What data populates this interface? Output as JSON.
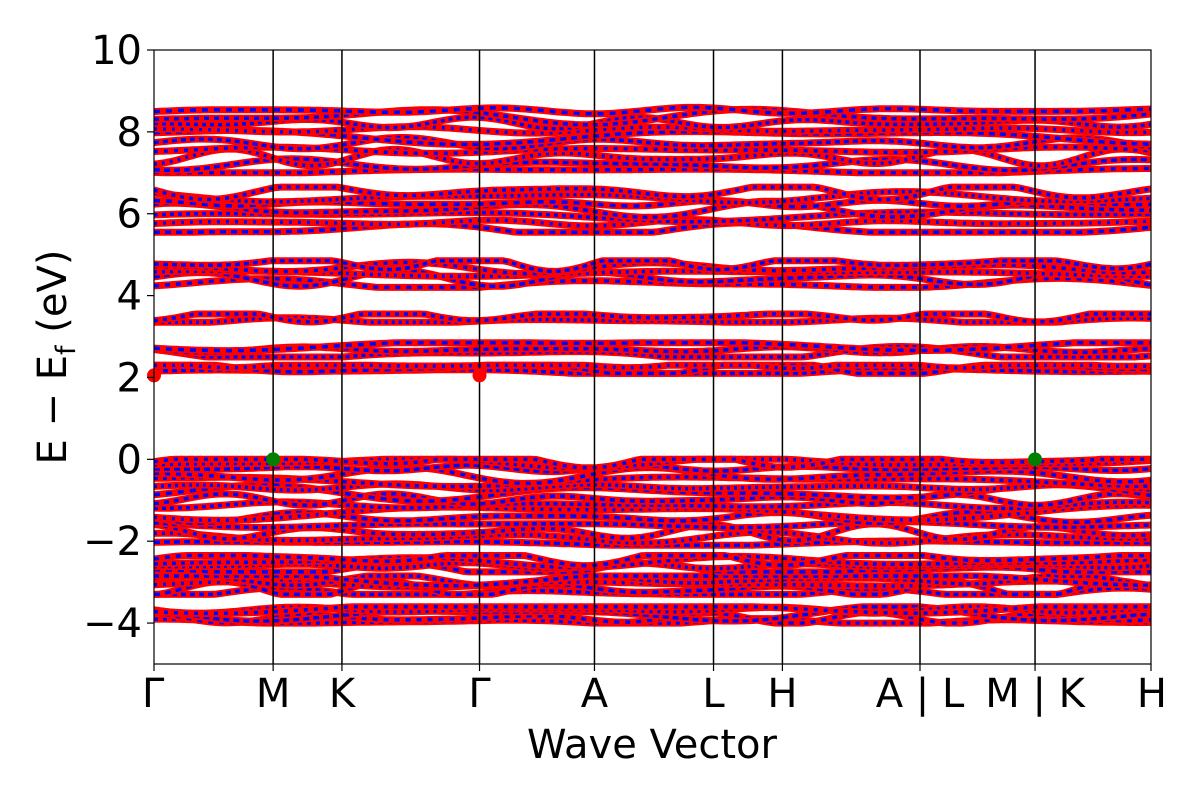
{
  "chart_data": {
    "type": "line",
    "title": "",
    "xlabel": "Wave Vector",
    "ylabel_main": "E − E",
    "ylabel_sub": "f",
    "ylabel_unit": " (eV)",
    "ylim": [
      -5,
      10
    ],
    "yticks": [
      -4,
      -2,
      0,
      2,
      4,
      6,
      8,
      10
    ],
    "ytick_labels": [
      "−4",
      "−2",
      "0",
      "2",
      "4",
      "6",
      "8",
      "10"
    ],
    "grid": false,
    "legend": "none",
    "kpath_ticks": [
      {
        "pos": 0.0,
        "label": "Γ"
      },
      {
        "pos": 0.1195,
        "label": "M"
      },
      {
        "pos": 0.1885,
        "label": "K"
      },
      {
        "pos": 0.3265,
        "label": "Γ"
      },
      {
        "pos": 0.4418,
        "label": "A"
      },
      {
        "pos": 0.5612,
        "label": "L"
      },
      {
        "pos": 0.6303,
        "label": "H"
      },
      {
        "pos": 0.7683,
        "label": "A | L"
      },
      {
        "pos": 0.8837,
        "label": "M | K"
      },
      {
        "pos": 1.0,
        "label": "H"
      }
    ],
    "band_groups_eV": [
      {
        "range": [
          -4.0,
          -3.6
        ],
        "bands": [
          -3.97,
          -3.88,
          -3.78,
          -3.68,
          -3.62
        ]
      },
      {
        "range": [
          -3.3,
          -2.85
        ],
        "bands": [
          -3.28,
          -3.18,
          -3.05,
          -2.95,
          -2.88
        ]
      },
      {
        "range": [
          -2.75,
          -2.35
        ],
        "bands": [
          -2.72,
          -2.6,
          -2.5,
          -2.4
        ]
      },
      {
        "range": [
          -2.1,
          0.0
        ],
        "bands": [
          -2.05,
          -1.92,
          -1.78,
          -1.6,
          -1.42,
          -1.28,
          -1.12,
          -0.98,
          -0.82,
          -0.68,
          -0.52,
          -0.38,
          -0.22,
          -0.08,
          -0.01
        ]
      },
      {
        "range": [
          2.1,
          2.3
        ],
        "bands": [
          2.12,
          2.22,
          2.3
        ]
      },
      {
        "range": [
          2.5,
          2.85
        ],
        "bands": [
          2.55,
          2.68,
          2.8
        ]
      },
      {
        "range": [
          3.35,
          3.55
        ],
        "bands": [
          3.38,
          3.5
        ]
      },
      {
        "range": [
          4.2,
          4.85
        ],
        "bands": [
          4.28,
          4.42,
          4.55,
          4.68,
          4.8
        ]
      },
      {
        "range": [
          5.55,
          6.65
        ],
        "bands": [
          5.6,
          5.78,
          5.95,
          6.1,
          6.25,
          6.4,
          6.55
        ]
      },
      {
        "range": [
          7.0,
          8.6
        ],
        "bands": [
          7.05,
          7.2,
          7.38,
          7.55,
          7.72,
          7.9,
          8.05,
          8.22,
          8.38,
          8.52
        ]
      }
    ],
    "series": [
      {
        "name": "",
        "color": "#ff0000"
      },
      {
        "name": "",
        "color": "#0000ff"
      }
    ],
    "markers": [
      {
        "kpos": 0.0,
        "energy": 2.05,
        "color": "#ff0000"
      },
      {
        "kpos": 0.3265,
        "energy": 2.05,
        "color": "#ff0000"
      },
      {
        "kpos": 0.1195,
        "energy": 0.0,
        "color": "#008000"
      },
      {
        "kpos": 0.8837,
        "energy": 0.0,
        "color": "#008000"
      }
    ]
  }
}
